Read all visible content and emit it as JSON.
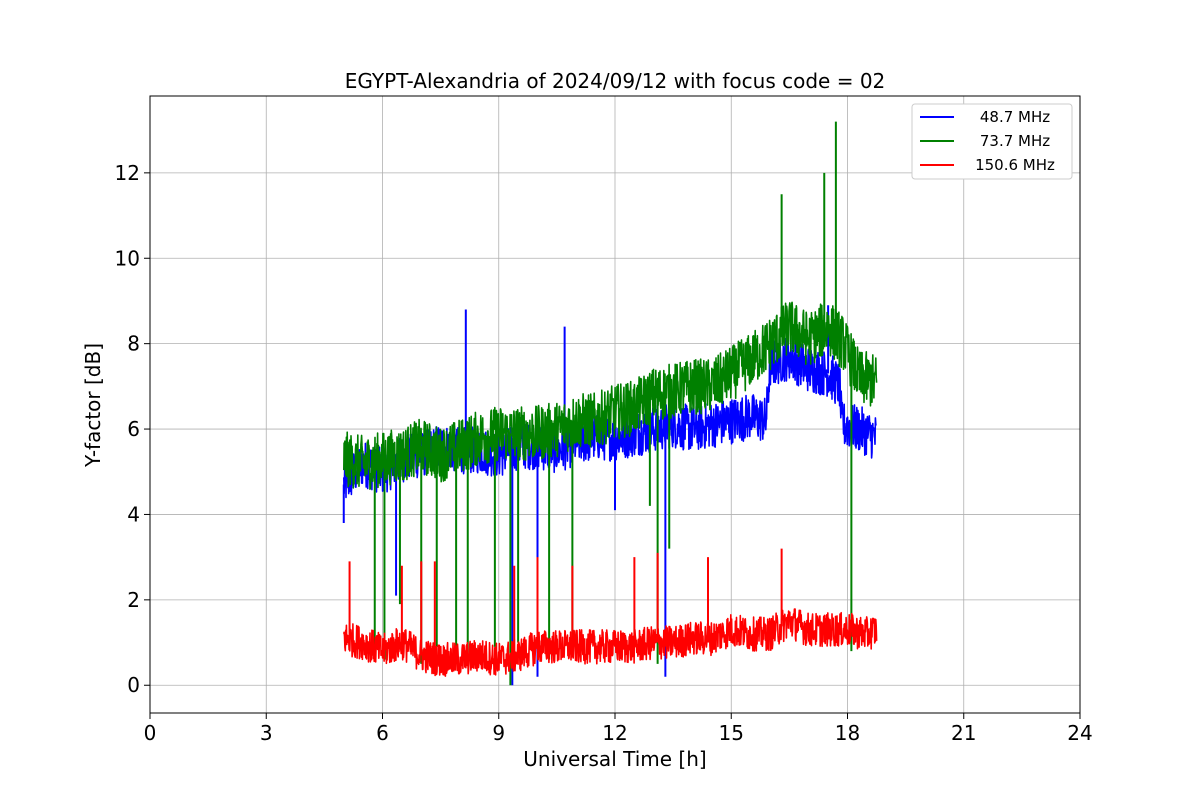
{
  "chart_data": {
    "type": "line",
    "title": "EGYPT-Alexandria of 2024/09/12 with focus code = 02",
    "xlabel": "Universal Time [h]",
    "ylabel": "Y-factor [dB]",
    "xlim": [
      0,
      24
    ],
    "ylim": [
      -0.65,
      13.8
    ],
    "xticks": [
      0,
      3,
      6,
      9,
      12,
      15,
      18,
      21,
      24
    ],
    "yticks": [
      0,
      2,
      4,
      6,
      8,
      10,
      12
    ],
    "grid": true,
    "legend_position": "top-right",
    "series": [
      {
        "name": "48.7 MHz",
        "color": "#0000ff",
        "base": [
          [
            5.0,
            4.7
          ],
          [
            5.5,
            5.2
          ],
          [
            6.0,
            5.0
          ],
          [
            6.5,
            5.3
          ],
          [
            7.0,
            5.4
          ],
          [
            7.5,
            5.6
          ],
          [
            8.0,
            5.5
          ],
          [
            8.5,
            5.5
          ],
          [
            9.0,
            5.4
          ],
          [
            9.5,
            5.6
          ],
          [
            10.0,
            5.6
          ],
          [
            10.5,
            5.5
          ],
          [
            11.0,
            5.7
          ],
          [
            11.5,
            5.8
          ],
          [
            12.0,
            5.8
          ],
          [
            12.5,
            5.9
          ],
          [
            13.0,
            6.0
          ],
          [
            13.5,
            6.1
          ],
          [
            14.0,
            6.0
          ],
          [
            14.5,
            6.1
          ],
          [
            15.0,
            6.2
          ],
          [
            15.5,
            6.3
          ],
          [
            15.9,
            6.2
          ],
          [
            16.0,
            7.5
          ],
          [
            16.5,
            7.7
          ],
          [
            17.0,
            7.4
          ],
          [
            17.5,
            7.3
          ],
          [
            17.8,
            7.0
          ],
          [
            17.85,
            6.1
          ],
          [
            18.3,
            6.0
          ],
          [
            18.75,
            5.8
          ]
        ],
        "spikes": [
          [
            5.0,
            3.8
          ],
          [
            6.35,
            2.1
          ],
          [
            8.15,
            8.8
          ],
          [
            9.35,
            0.0
          ],
          [
            10.0,
            0.2
          ],
          [
            10.7,
            8.4
          ],
          [
            12.0,
            4.1
          ],
          [
            13.3,
            0.2
          ],
          [
            17.5,
            8.9
          ]
        ]
      },
      {
        "name": "73.7 MHz",
        "color": "#008000",
        "base": [
          [
            5.0,
            5.3
          ],
          [
            5.5,
            5.2
          ],
          [
            6.0,
            5.3
          ],
          [
            6.5,
            5.4
          ],
          [
            7.0,
            5.6
          ],
          [
            7.5,
            5.4
          ],
          [
            8.0,
            5.6
          ],
          [
            8.5,
            5.8
          ],
          [
            9.0,
            5.9
          ],
          [
            9.5,
            5.9
          ],
          [
            10.0,
            5.9
          ],
          [
            10.5,
            6.0
          ],
          [
            11.0,
            6.2
          ],
          [
            11.5,
            6.2
          ],
          [
            12.0,
            6.4
          ],
          [
            12.5,
            6.5
          ],
          [
            13.0,
            6.8
          ],
          [
            13.5,
            6.9
          ],
          [
            14.0,
            7.0
          ],
          [
            14.5,
            7.0
          ],
          [
            15.0,
            7.3
          ],
          [
            15.5,
            7.6
          ],
          [
            16.0,
            8.0
          ],
          [
            16.5,
            8.4
          ],
          [
            17.0,
            8.1
          ],
          [
            17.5,
            8.4
          ],
          [
            17.9,
            8.0
          ],
          [
            18.3,
            7.2
          ],
          [
            18.75,
            7.1
          ]
        ],
        "spikes": [
          [
            5.8,
            0.8
          ],
          [
            6.05,
            0.6
          ],
          [
            6.45,
            1.9
          ],
          [
            7.0,
            0.5
          ],
          [
            7.4,
            0.9
          ],
          [
            7.9,
            0.7
          ],
          [
            8.2,
            0.5
          ],
          [
            8.9,
            0.9
          ],
          [
            9.3,
            0.0
          ],
          [
            9.5,
            1.0
          ],
          [
            10.3,
            0.6
          ],
          [
            10.9,
            1.1
          ],
          [
            12.9,
            4.2
          ],
          [
            13.1,
            0.5
          ],
          [
            13.4,
            3.2
          ],
          [
            16.3,
            11.5
          ],
          [
            17.4,
            12.0
          ],
          [
            17.7,
            13.2
          ],
          [
            18.1,
            0.8
          ]
        ]
      },
      {
        "name": "150.6 MHz",
        "color": "#ff0000",
        "base": [
          [
            5.0,
            1.1
          ],
          [
            5.5,
            1.0
          ],
          [
            6.0,
            0.8
          ],
          [
            6.5,
            1.0
          ],
          [
            7.0,
            0.7
          ],
          [
            7.5,
            0.6
          ],
          [
            8.0,
            0.6
          ],
          [
            8.5,
            0.7
          ],
          [
            9.0,
            0.6
          ],
          [
            9.5,
            0.7
          ],
          [
            10.0,
            0.9
          ],
          [
            10.5,
            0.9
          ],
          [
            11.0,
            0.9
          ],
          [
            11.5,
            0.9
          ],
          [
            12.0,
            0.9
          ],
          [
            12.5,
            0.9
          ],
          [
            13.0,
            1.0
          ],
          [
            13.5,
            1.0
          ],
          [
            14.0,
            1.1
          ],
          [
            14.5,
            1.1
          ],
          [
            15.0,
            1.3
          ],
          [
            15.5,
            1.2
          ],
          [
            16.0,
            1.2
          ],
          [
            16.5,
            1.5
          ],
          [
            17.0,
            1.3
          ],
          [
            17.5,
            1.3
          ],
          [
            18.0,
            1.3
          ],
          [
            18.5,
            1.2
          ],
          [
            18.75,
            1.3
          ]
        ],
        "spikes": [
          [
            5.15,
            2.9
          ],
          [
            6.5,
            2.8
          ],
          [
            7.0,
            2.9
          ],
          [
            7.35,
            2.9
          ],
          [
            9.4,
            2.8
          ],
          [
            10.0,
            3.0
          ],
          [
            10.9,
            2.8
          ],
          [
            12.5,
            3.0
          ],
          [
            13.1,
            3.1
          ],
          [
            14.4,
            3.0
          ],
          [
            16.3,
            3.2
          ]
        ]
      }
    ]
  }
}
